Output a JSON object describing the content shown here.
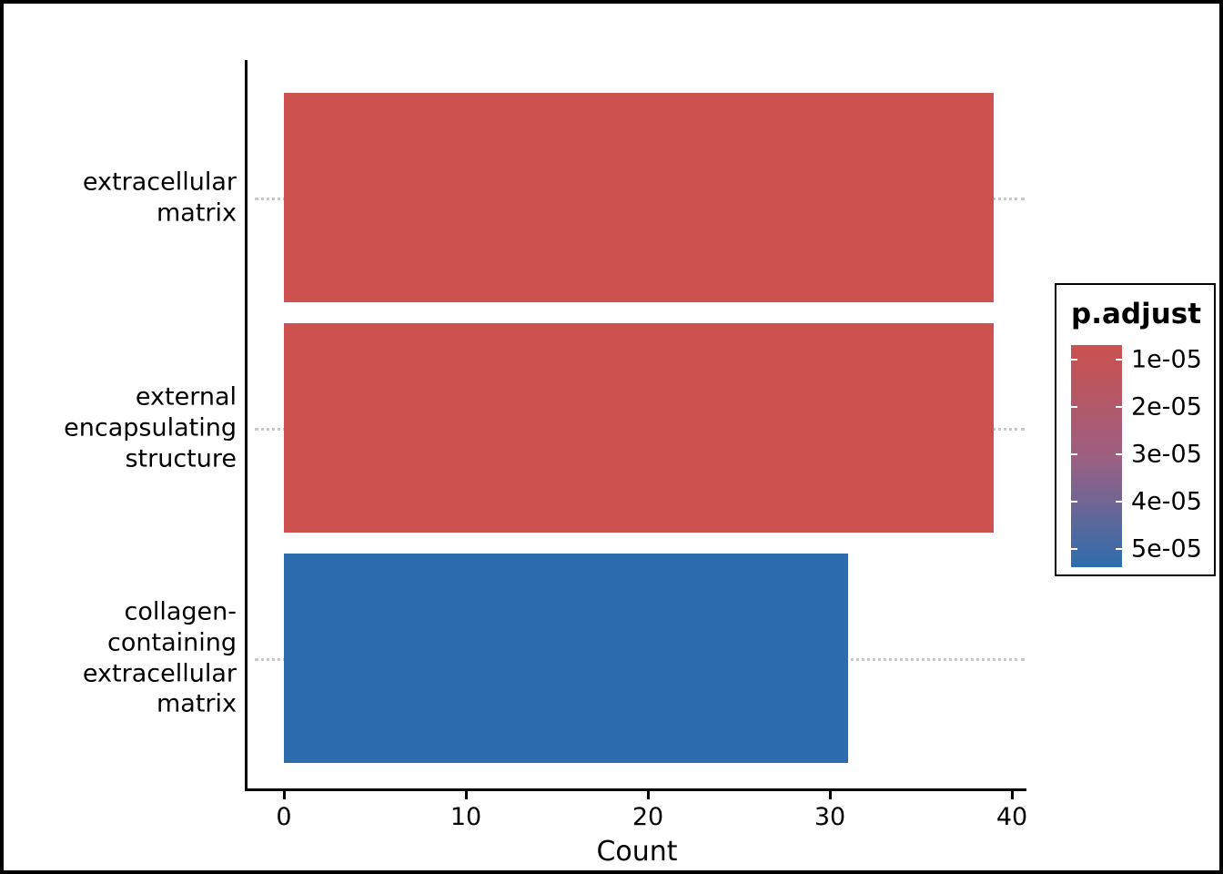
{
  "figure": {
    "background_color": "#ffffff",
    "border_color": "#000000"
  },
  "chart_data": {
    "type": "bar",
    "orientation": "horizontal",
    "title": "",
    "xlabel": "Count",
    "ylabel": "",
    "xlim": [
      0,
      41
    ],
    "x_ticks": [
      0,
      10,
      20,
      30,
      40
    ],
    "categories": [
      "extracellular matrix",
      "external encapsulating\nstructure",
      "collagen-containing\nextracellular matrix"
    ],
    "values": [
      39,
      39,
      31
    ],
    "bar_colors": [
      "#CD524F",
      "#CD524F",
      "#2E6DAD"
    ],
    "grid": "dotted-horizontal",
    "grid_color": "#C8C8C8",
    "axis_color": "#000000",
    "legend": {
      "title": "p.adjust",
      "position": "right",
      "type": "colorbar",
      "tick_labels": [
        "1e-05",
        "2e-05",
        "3e-05",
        "4e-05",
        "5e-05"
      ],
      "tick_values": [
        1e-05,
        2e-05,
        3e-05,
        4e-05,
        5e-05
      ],
      "low_color": "#CB514E",
      "mid_color": "#9A6083",
      "high_color": "#2E6DAD",
      "gradient_stops": [
        "#CB514E",
        "#9A6083",
        "#2E6DAD"
      ]
    }
  }
}
